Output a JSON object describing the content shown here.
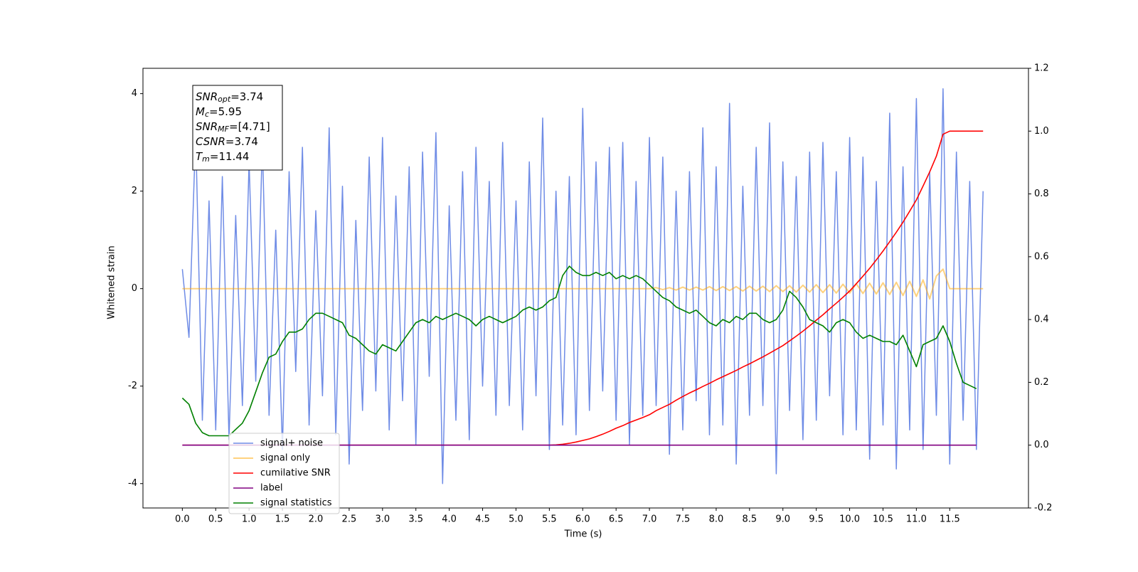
{
  "chart_data": {
    "type": "line",
    "xlabel": "Time (s)",
    "ylabel": "Whitened strain",
    "xlim": [
      -0.59,
      12.68
    ],
    "ylim": [
      -4.5,
      4.52
    ],
    "y2lim": [
      -0.2,
      1.2
    ],
    "xticks": [
      {
        "value": 0,
        "label": "0.0"
      },
      0.5,
      {
        "value": 1,
        "label": "1.0"
      },
      1.5,
      {
        "value": 2,
        "label": "2.0"
      },
      2.5,
      {
        "value": 3,
        "label": "3.0"
      },
      3.5,
      {
        "value": 4,
        "label": "4.0"
      },
      4.5,
      {
        "value": 5,
        "label": "5.0"
      },
      5.5,
      {
        "value": 6,
        "label": "6.0"
      },
      6.5,
      {
        "value": 7,
        "label": "7.0"
      },
      7.5,
      {
        "value": 8,
        "label": "8.0"
      },
      8.5,
      {
        "value": 9,
        "label": "9.0"
      },
      9.5,
      {
        "value": 10,
        "label": "10.0"
      },
      10.5,
      {
        "value": 11,
        "label": "11.0"
      },
      11.5
    ],
    "yticks": [
      -4,
      -2,
      0,
      2,
      4
    ],
    "y2ticks": [
      -0.2,
      {
        "value": 0,
        "label": "0.0"
      },
      0.2,
      0.4,
      0.6,
      0.8,
      {
        "value": 1,
        "label": "1.0"
      },
      1.2
    ],
    "legend_loc": "lower left",
    "annotation": [
      {
        "name": "SNR",
        "sub": "opt",
        "value": "=3.74"
      },
      {
        "name": "M",
        "sub": "c",
        "value": "=5.95"
      },
      {
        "name": "SNR",
        "sub": "MF",
        "value": "=[4.71]"
      },
      {
        "name": "CSNR",
        "value": "=3.74"
      },
      {
        "name": "T",
        "sub": "m",
        "value": "=11.44"
      }
    ],
    "x": [
      0.0,
      0.1,
      0.2,
      0.3,
      0.4,
      0.5,
      0.6,
      0.7,
      0.8,
      0.9,
      1.0,
      1.1,
      1.2,
      1.3,
      1.4,
      1.5,
      1.6,
      1.7,
      1.8,
      1.9,
      2.0,
      2.1,
      2.2,
      2.3,
      2.4,
      2.5,
      2.6,
      2.7,
      2.8,
      2.9,
      3.0,
      3.1,
      3.2,
      3.3,
      3.4,
      3.5,
      3.6,
      3.7,
      3.8,
      3.9,
      4.0,
      4.1,
      4.2,
      4.3,
      4.4,
      4.5,
      4.6,
      4.7,
      4.8,
      4.9,
      5.0,
      5.1,
      5.2,
      5.3,
      5.4,
      5.5,
      5.6,
      5.7,
      5.8,
      5.9,
      6.0,
      6.1,
      6.2,
      6.3,
      6.4,
      6.5,
      6.6,
      6.7,
      6.8,
      6.9,
      7.0,
      7.1,
      7.2,
      7.3,
      7.4,
      7.5,
      7.6,
      7.7,
      7.8,
      7.9,
      8.0,
      8.1,
      8.2,
      8.3,
      8.4,
      8.5,
      8.6,
      8.7,
      8.8,
      8.9,
      9.0,
      9.1,
      9.2,
      9.3,
      9.4,
      9.5,
      9.6,
      9.7,
      9.8,
      9.9,
      10.0,
      10.1,
      10.2,
      10.3,
      10.4,
      10.5,
      10.6,
      10.7,
      10.8,
      10.9,
      11.0,
      11.1,
      11.2,
      11.3,
      11.4,
      11.5,
      11.6,
      11.7,
      11.8,
      11.9,
      12.0
    ],
    "series": [
      {
        "name": "signal+ noise",
        "color": "#6f8ce6",
        "width": 1.5,
        "values": [
          0.4,
          -1.0,
          3.2,
          -2.7,
          1.8,
          -2.9,
          2.3,
          -3.1,
          1.5,
          -2.4,
          2.6,
          -1.9,
          3.0,
          -2.6,
          1.2,
          -3.3,
          2.4,
          -1.7,
          2.9,
          -2.8,
          1.6,
          -2.2,
          3.3,
          -3.0,
          2.1,
          -3.6,
          1.4,
          -2.5,
          2.7,
          -2.1,
          3.1,
          -2.9,
          1.9,
          -2.3,
          2.5,
          -3.2,
          2.8,
          -1.8,
          3.2,
          -4.0,
          1.7,
          -2.7,
          2.4,
          -3.1,
          2.9,
          -2.0,
          2.2,
          -2.6,
          3.0,
          -2.4,
          1.8,
          -2.9,
          2.6,
          -2.2,
          3.5,
          -3.3,
          2.0,
          -2.8,
          2.3,
          -3.0,
          3.7,
          -2.5,
          2.6,
          -2.1,
          2.9,
          -2.7,
          3.0,
          -3.2,
          2.2,
          -2.6,
          3.1,
          -2.4,
          2.7,
          -3.4,
          2.0,
          -2.9,
          2.4,
          -2.3,
          3.3,
          -3.0,
          2.5,
          -2.8,
          3.8,
          -3.6,
          2.1,
          -2.6,
          2.9,
          -2.4,
          3.4,
          -3.8,
          2.6,
          -2.5,
          2.3,
          -3.1,
          2.8,
          -2.7,
          3.0,
          -2.2,
          2.4,
          -3.0,
          3.1,
          -2.9,
          2.7,
          -3.5,
          2.2,
          -2.8,
          3.6,
          -3.7,
          2.5,
          -2.9,
          3.9,
          -3.3,
          2.4,
          -2.6,
          4.1,
          -3.6,
          2.8,
          -2.7,
          2.2,
          -3.3,
          2.0
        ]
      },
      {
        "name": "signal only",
        "color": "#ffa500",
        "opacity": 0.5,
        "width": 2,
        "values": [
          0,
          0,
          0,
          0,
          0,
          0,
          0,
          0,
          0,
          0,
          0,
          0,
          0,
          0,
          0,
          0,
          0,
          0,
          0,
          0,
          0,
          0,
          0,
          0,
          0,
          0,
          0,
          0,
          0,
          0,
          0,
          0,
          0,
          0,
          0,
          0,
          0,
          0,
          0,
          0,
          0,
          0,
          0,
          0,
          0,
          0,
          0,
          0,
          0,
          0,
          0,
          0,
          0,
          0,
          0,
          0,
          0,
          0,
          0,
          0,
          0,
          0,
          0,
          0,
          0,
          0,
          0,
          0,
          0,
          0,
          0,
          0.02,
          -0.02,
          0.02,
          -0.03,
          0.03,
          -0.03,
          0.03,
          -0.03,
          0.04,
          -0.04,
          0.04,
          -0.04,
          0.04,
          -0.05,
          0.05,
          -0.05,
          0.05,
          -0.06,
          0.06,
          -0.06,
          0.06,
          -0.07,
          0.07,
          -0.07,
          0.08,
          -0.08,
          0.08,
          -0.09,
          0.09,
          -0.09,
          0.1,
          -0.1,
          0.11,
          -0.11,
          0.12,
          -0.12,
          0.13,
          -0.14,
          0.15,
          -0.16,
          0.18,
          -0.21,
          0.26,
          0.4,
          0,
          0,
          0,
          0,
          0,
          0
        ]
      },
      {
        "name": "cumilative SNR",
        "color": "#ff0000",
        "width": 1.6,
        "axis": "y2",
        "values": [
          0,
          0,
          0,
          0,
          0,
          0,
          0,
          0,
          0,
          0,
          0,
          0,
          0,
          0,
          0,
          0,
          0,
          0,
          0,
          0,
          0,
          0,
          0,
          0,
          0,
          0,
          0,
          0,
          0,
          0,
          0,
          0,
          0,
          0,
          0,
          0,
          0,
          0,
          0,
          0,
          0,
          0,
          0,
          0,
          0,
          0,
          0,
          0,
          0,
          0,
          0,
          0,
          0,
          0,
          0,
          0,
          0.001,
          0.003,
          0.006,
          0.01,
          0.015,
          0.02,
          0.027,
          0.035,
          0.044,
          0.054,
          0.062,
          0.072,
          0.08,
          0.088,
          0.097,
          0.11,
          0.12,
          0.13,
          0.143,
          0.155,
          0.166,
          0.176,
          0.187,
          0.197,
          0.208,
          0.218,
          0.228,
          0.238,
          0.249,
          0.259,
          0.27,
          0.281,
          0.293,
          0.305,
          0.317,
          0.332,
          0.347,
          0.363,
          0.38,
          0.398,
          0.415,
          0.434,
          0.452,
          0.471,
          0.491,
          0.514,
          0.538,
          0.563,
          0.59,
          0.618,
          0.648,
          0.678,
          0.71,
          0.745,
          0.781,
          0.825,
          0.87,
          0.92,
          0.99,
          1,
          1,
          1,
          1,
          1,
          1
        ]
      },
      {
        "name": "label",
        "color": "#800080",
        "width": 1.6,
        "axis": "y2",
        "values": [
          0,
          0,
          0,
          0,
          0,
          0,
          0,
          0,
          0,
          0,
          0,
          0,
          0,
          0,
          0,
          0,
          0,
          0,
          0,
          0,
          0,
          0,
          0,
          0,
          0,
          0,
          0,
          0,
          0,
          0,
          0,
          0,
          0,
          0,
          0,
          0,
          0,
          0,
          0,
          0,
          0,
          0,
          0,
          0,
          0,
          0,
          0,
          0,
          0,
          0,
          0,
          0,
          0,
          0,
          0,
          0,
          0,
          0,
          0,
          0,
          0,
          0,
          0,
          0,
          0,
          0,
          0,
          0,
          0,
          0,
          0,
          0,
          0,
          0,
          0,
          0,
          0,
          0,
          0,
          0,
          0,
          0,
          0,
          0,
          0,
          0,
          0,
          0,
          0,
          0,
          0,
          0,
          0,
          0,
          0,
          0,
          0,
          0,
          0,
          0,
          0,
          0,
          0,
          0,
          0,
          0,
          0,
          0,
          0,
          0,
          0,
          0,
          0,
          0,
          0,
          0,
          0,
          0,
          0,
          0,
          null
        ]
      },
      {
        "name": "signal statistics",
        "color": "#008000",
        "width": 1.6,
        "axis": "y2",
        "values": [
          0.15,
          0.13,
          0.07,
          0.04,
          0.03,
          0.03,
          0.03,
          0.03,
          0.05,
          0.07,
          0.11,
          0.17,
          0.23,
          0.28,
          0.29,
          0.33,
          0.36,
          0.36,
          0.37,
          0.4,
          0.42,
          0.42,
          0.41,
          0.4,
          0.39,
          0.35,
          0.34,
          0.32,
          0.3,
          0.29,
          0.32,
          0.31,
          0.3,
          0.33,
          0.36,
          0.39,
          0.4,
          0.39,
          0.41,
          0.4,
          0.41,
          0.42,
          0.41,
          0.4,
          0.38,
          0.4,
          0.41,
          0.4,
          0.39,
          0.4,
          0.41,
          0.43,
          0.44,
          0.43,
          0.44,
          0.46,
          0.47,
          0.54,
          0.57,
          0.55,
          0.54,
          0.54,
          0.55,
          0.54,
          0.55,
          0.53,
          0.54,
          0.53,
          0.54,
          0.53,
          0.51,
          0.49,
          0.47,
          0.46,
          0.44,
          0.43,
          0.42,
          0.43,
          0.41,
          0.39,
          0.38,
          0.4,
          0.39,
          0.41,
          0.4,
          0.42,
          0.42,
          0.4,
          0.39,
          0.4,
          0.43,
          0.49,
          0.47,
          0.44,
          0.4,
          0.39,
          0.38,
          0.36,
          0.39,
          0.4,
          0.39,
          0.36,
          0.34,
          0.35,
          0.34,
          0.33,
          0.33,
          0.32,
          0.35,
          0.3,
          0.25,
          0.32,
          0.33,
          0.34,
          0.38,
          0.33,
          0.26,
          0.2,
          0.19,
          0.18,
          null
        ]
      }
    ]
  }
}
